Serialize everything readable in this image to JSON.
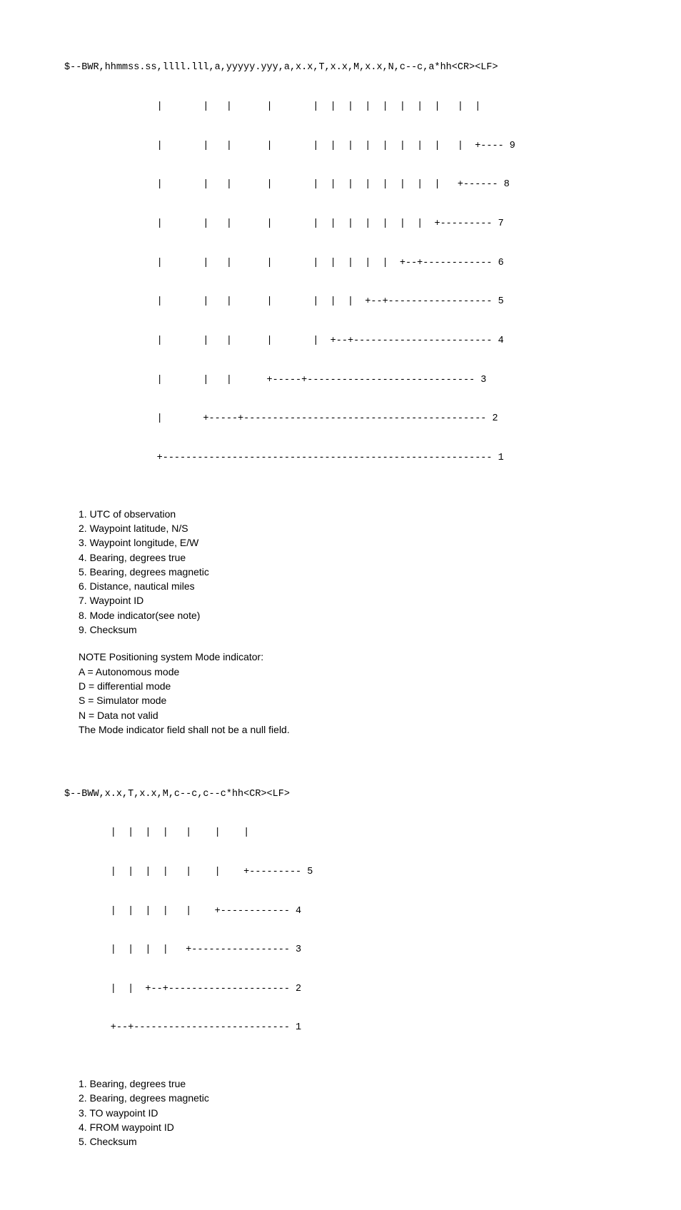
{
  "bwr": {
    "header": "$--BWR,hhmmss.ss,llll.lll,a,yyyyy.yyy,a,x.x,T,x.x,M,x.x,N,c--c,a*hh<CR><LF>",
    "diagram_lines": [
      "                |       |   |      |       |  |  |  |  |  |  |  |   |  |",
      "                |       |   |      |       |  |  |  |  |  |  |  |   |  +---- 9",
      "                |       |   |      |       |  |  |  |  |  |  |  |   +------ 8",
      "                |       |   |      |       |  |  |  |  |  |  |  +--------- 7",
      "                |       |   |      |       |  |  |  |  |  +--+------------ 6",
      "                |       |   |      |       |  |  |  +--+------------------ 5",
      "                |       |   |      |       |  +--+------------------------ 4",
      "                |       |   |      +-----+----------------------------- 3",
      "                |       +-----+------------------------------------------ 2",
      "                +--------------------------------------------------------- 1"
    ],
    "fields": [
      "1. UTC of observation",
      "2. Waypoint latitude, N/S",
      "3. Waypoint longitude, E/W",
      "4. Bearing, degrees true",
      "5. Bearing, degrees magnetic",
      "6. Distance, nautical miles",
      "7. Waypoint ID",
      "8. Mode indicator(see note)",
      "9. Checksum"
    ],
    "note_title": "NOTE  Positioning system Mode indicator:",
    "note_lines": [
      "A = Autonomous mode",
      "D = differential mode",
      "S = Simulator mode",
      "N = Data not valid",
      "The Mode indicator field shall not be a null field."
    ]
  },
  "bww": {
    "header": "$--BWW,x.x,T,x.x,M,c--c,c--c*hh<CR><LF>",
    "diagram_lines": [
      "        |  |  |  |   |    |    |",
      "        |  |  |  |   |    |    +--------- 5",
      "        |  |  |  |   |    +------------ 4",
      "        |  |  |  |   +----------------- 3",
      "        |  |  +--+--------------------- 2",
      "        +--+--------------------------- 1"
    ],
    "fields": [
      "1. Bearing, degrees true",
      "2. Bearing, degrees magnetic",
      "3. TO waypoint ID",
      "4. FROM waypoint ID",
      "5. Checksum"
    ]
  }
}
